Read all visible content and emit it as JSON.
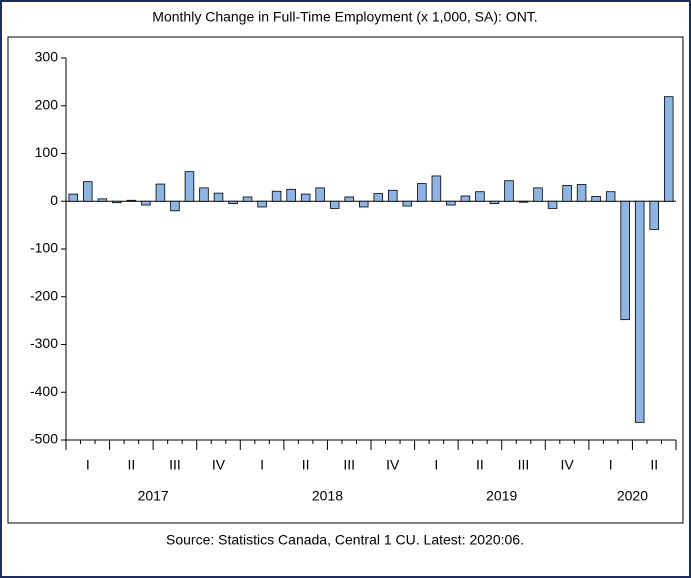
{
  "chart_data": {
    "type": "bar",
    "title": "Monthly Change in Full-Time Employment (x 1,000, SA): ONT.",
    "source": "Source: Statistics Canada, Central 1 CU. Latest: 2020:06.",
    "categories": [
      null,
      "I",
      null,
      null,
      "II",
      null,
      null,
      "III",
      null,
      null,
      "IV",
      null,
      null,
      "I",
      null,
      null,
      "II",
      null,
      null,
      "III",
      null,
      null,
      "IV",
      null,
      null,
      "I",
      null,
      null,
      "II",
      null,
      null,
      "III",
      null,
      null,
      "IV",
      null,
      null,
      "I",
      null,
      null,
      "II",
      null
    ],
    "years": [
      "2017",
      "2018",
      "2019",
      "2020"
    ],
    "values": [
      15,
      41,
      5,
      -3,
      2,
      -8,
      36,
      -20,
      62,
      28,
      17,
      -5,
      9,
      -12,
      21,
      25,
      15,
      28,
      -15,
      9,
      -12,
      16,
      23,
      -10,
      37,
      53,
      -8,
      11,
      20,
      -5,
      43,
      -2,
      28,
      -15,
      33,
      35,
      10,
      20,
      -248,
      -463,
      -59,
      219
    ],
    "color": "#8db4e2",
    "ylim": [
      -500,
      300
    ],
    "yticks": [
      -500,
      -400,
      -300,
      -200,
      -100,
      0,
      100,
      200,
      300
    ]
  }
}
